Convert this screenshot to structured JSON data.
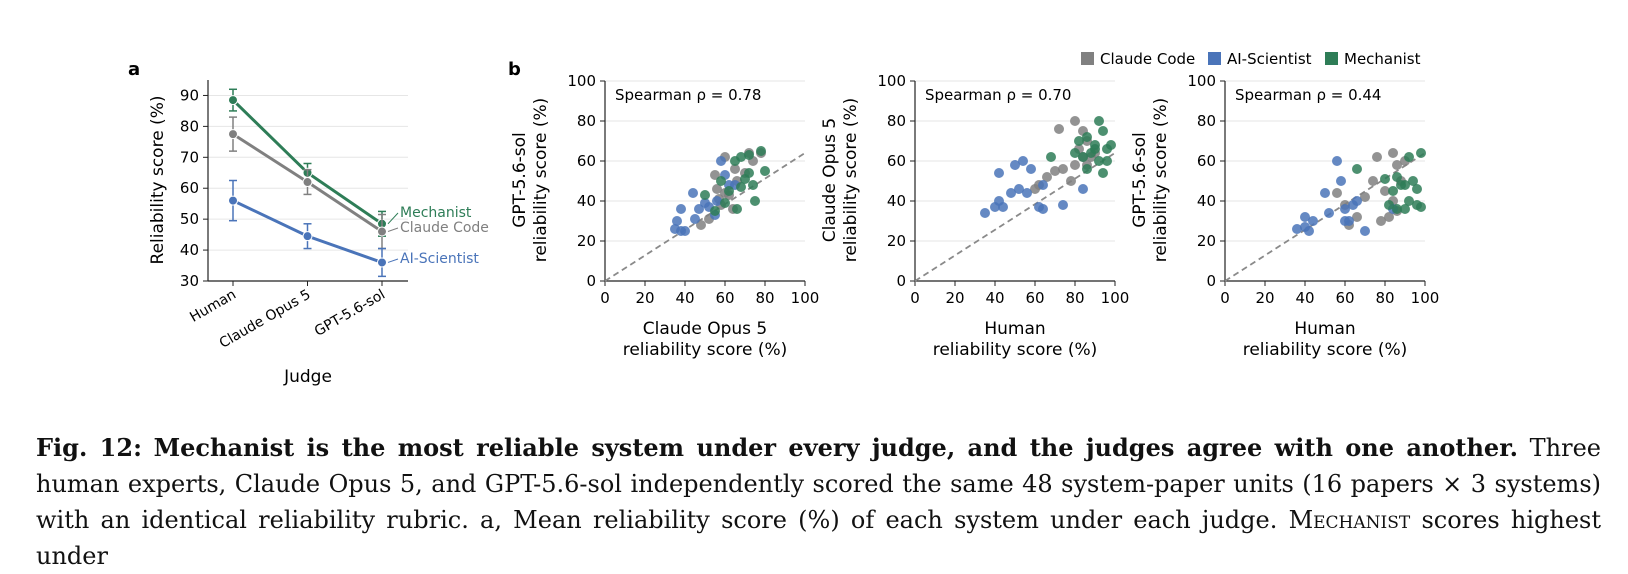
{
  "colors": {
    "mechanist": "#2e7d57",
    "claude_code": "#808080",
    "ai_scientist": "#4a74b9",
    "grid": "#e6e6e6",
    "diagonal": "#8a8a8a"
  },
  "chart_data": [
    {
      "panel_label": "a",
      "type": "line",
      "categories": [
        "Human",
        "Claude Opus 5",
        "GPT-5.6-sol"
      ],
      "xlabel": "Judge",
      "ylabel": "Reliability score (%)",
      "ylim": [
        30,
        95
      ],
      "yticks": [
        30,
        40,
        50,
        60,
        70,
        80,
        90
      ],
      "grid": true,
      "series": [
        {
          "name": "Mechanist",
          "color_key": "mechanist",
          "values": [
            88.5,
            65.0,
            48.5
          ],
          "err": [
            3.5,
            3.0,
            4.0
          ]
        },
        {
          "name": "Claude Code",
          "color_key": "claude_code",
          "values": [
            77.5,
            62.0,
            46.0
          ],
          "err": [
            5.5,
            4.0,
            5.5
          ]
        },
        {
          "name": "AI-Scientist",
          "color_key": "ai_scientist",
          "values": [
            56.0,
            44.5,
            36.0
          ],
          "err": [
            6.5,
            4.0,
            4.5
          ]
        }
      ]
    },
    {
      "panel_label": "b",
      "type": "scatter",
      "xlabel_lines": [
        "Claude Opus 5",
        "reliability score (%)"
      ],
      "ylabel_lines": [
        "GPT-5.6-sol",
        "reliability score (%)"
      ],
      "annotation": "Spearman ρ = 0.78",
      "xlim": [
        0,
        100
      ],
      "ylim": [
        0,
        100
      ],
      "ticks": [
        0,
        20,
        40,
        60,
        80,
        100
      ],
      "grid": true,
      "series": [
        {
          "name": "Claude Code",
          "color_key": "claude_code",
          "points": [
            [
              55,
              53
            ],
            [
              60,
              62
            ],
            [
              65,
              56
            ],
            [
              72,
              64
            ],
            [
              78,
              64
            ],
            [
              62,
              43
            ],
            [
              58,
              38
            ],
            [
              52,
              31
            ],
            [
              48,
              28
            ],
            [
              66,
              50
            ],
            [
              56,
              46
            ],
            [
              70,
              54
            ],
            [
              60,
              44
            ],
            [
              64,
              36
            ],
            [
              74,
              60
            ],
            [
              57,
              41
            ]
          ]
        },
        {
          "name": "AI-Scientist",
          "color_key": "ai_scientist",
          "points": [
            [
              35,
              26
            ],
            [
              38,
              25
            ],
            [
              40,
              25
            ],
            [
              36,
              30
            ],
            [
              45,
              31
            ],
            [
              47,
              36
            ],
            [
              50,
              39
            ],
            [
              55,
              33
            ],
            [
              60,
              53
            ],
            [
              62,
              48
            ],
            [
              58,
              60
            ],
            [
              44,
              44
            ],
            [
              52,
              37
            ],
            [
              65,
              48
            ],
            [
              38,
              36
            ],
            [
              56,
              40
            ]
          ]
        },
        {
          "name": "Mechanist",
          "color_key": "mechanist",
          "points": [
            [
              68,
              62
            ],
            [
              72,
              63
            ],
            [
              78,
              65
            ],
            [
              65,
              60
            ],
            [
              70,
              51
            ],
            [
              74,
              48
            ],
            [
              62,
              45
            ],
            [
              68,
              47
            ],
            [
              80,
              55
            ],
            [
              66,
              36
            ],
            [
              75,
              40
            ],
            [
              60,
              39
            ],
            [
              55,
              35
            ],
            [
              58,
              50
            ],
            [
              72,
              54
            ],
            [
              50,
              43
            ]
          ]
        }
      ]
    },
    {
      "type": "scatter",
      "xlabel_lines": [
        "Human",
        "reliability score (%)"
      ],
      "ylabel_lines": [
        "Claude Opus 5",
        "reliability score (%)"
      ],
      "annotation": "Spearman ρ = 0.70",
      "xlim": [
        0,
        100
      ],
      "ylim": [
        0,
        100
      ],
      "ticks": [
        0,
        20,
        40,
        60,
        80,
        100
      ],
      "grid": true,
      "series": [
        {
          "name": "Claude Code",
          "color_key": "claude_code",
          "points": [
            [
              80,
              80
            ],
            [
              84,
              75
            ],
            [
              86,
              70
            ],
            [
              82,
              66
            ],
            [
              88,
              62
            ],
            [
              80,
              58
            ],
            [
              74,
              56
            ],
            [
              70,
              55
            ],
            [
              66,
              52
            ],
            [
              62,
              48
            ],
            [
              60,
              46
            ],
            [
              90,
              64
            ],
            [
              78,
              50
            ],
            [
              86,
              58
            ],
            [
              72,
              76
            ],
            [
              84,
              62
            ]
          ]
        },
        {
          "name": "AI-Scientist",
          "color_key": "ai_scientist",
          "points": [
            [
              35,
              34
            ],
            [
              40,
              37
            ],
            [
              42,
              40
            ],
            [
              44,
              37
            ],
            [
              48,
              44
            ],
            [
              52,
              46
            ],
            [
              56,
              44
            ],
            [
              50,
              58
            ],
            [
              54,
              60
            ],
            [
              58,
              56
            ],
            [
              42,
              54
            ],
            [
              62,
              37
            ],
            [
              64,
              48
            ],
            [
              74,
              38
            ],
            [
              84,
              46
            ],
            [
              64,
              36
            ]
          ]
        },
        {
          "name": "Mechanist",
          "color_key": "mechanist",
          "points": [
            [
              92,
              80
            ],
            [
              94,
              75
            ],
            [
              86,
              72
            ],
            [
              90,
              68
            ],
            [
              96,
              66
            ],
            [
              98,
              68
            ],
            [
              88,
              64
            ],
            [
              84,
              62
            ],
            [
              92,
              60
            ],
            [
              96,
              60
            ],
            [
              86,
              56
            ],
            [
              94,
              54
            ],
            [
              80,
              64
            ],
            [
              68,
              62
            ],
            [
              90,
              66
            ],
            [
              82,
              70
            ]
          ]
        }
      ]
    },
    {
      "type": "scatter",
      "xlabel_lines": [
        "Human",
        "reliability score (%)"
      ],
      "ylabel_lines": [
        "GPT-5.6-sol",
        "reliability score (%)"
      ],
      "annotation": "Spearman ρ = 0.44",
      "xlim": [
        0,
        100
      ],
      "ylim": [
        0,
        100
      ],
      "ticks": [
        0,
        20,
        40,
        60,
        80,
        100
      ],
      "grid": true,
      "series": [
        {
          "name": "Claude Code",
          "color_key": "claude_code",
          "points": [
            [
              84,
              64
            ],
            [
              86,
              58
            ],
            [
              90,
              60
            ],
            [
              76,
              62
            ],
            [
              80,
              45
            ],
            [
              84,
              40
            ],
            [
              86,
              35
            ],
            [
              82,
              32
            ],
            [
              78,
              30
            ],
            [
              70,
              42
            ],
            [
              66,
              32
            ],
            [
              62,
              28
            ],
            [
              56,
              44
            ],
            [
              60,
              38
            ],
            [
              74,
              50
            ],
            [
              88,
              50
            ]
          ]
        },
        {
          "name": "AI-Scientist",
          "color_key": "ai_scientist",
          "points": [
            [
              36,
              26
            ],
            [
              40,
              27
            ],
            [
              42,
              25
            ],
            [
              40,
              32
            ],
            [
              44,
              30
            ],
            [
              50,
              44
            ],
            [
              52,
              34
            ],
            [
              56,
              60
            ],
            [
              58,
              50
            ],
            [
              60,
              36
            ],
            [
              62,
              30
            ],
            [
              64,
              38
            ],
            [
              66,
              40
            ],
            [
              70,
              25
            ],
            [
              84,
              36
            ],
            [
              60,
              30
            ]
          ]
        },
        {
          "name": "Mechanist",
          "color_key": "mechanist",
          "points": [
            [
              80,
              51
            ],
            [
              84,
              45
            ],
            [
              86,
              52
            ],
            [
              90,
              48
            ],
            [
              92,
              62
            ],
            [
              94,
              50
            ],
            [
              98,
              64
            ],
            [
              92,
              40
            ],
            [
              96,
              38
            ],
            [
              98,
              37
            ],
            [
              90,
              36
            ],
            [
              88,
              48
            ],
            [
              96,
              46
            ],
            [
              86,
              36
            ],
            [
              82,
              38
            ],
            [
              66,
              56
            ]
          ]
        }
      ]
    }
  ],
  "legend": {
    "position": "top-right",
    "items": [
      {
        "label": "Claude Code",
        "color_key": "claude_code"
      },
      {
        "label": "AI-Scientist",
        "color_key": "ai_scientist"
      },
      {
        "label": "Mechanist",
        "color_key": "mechanist"
      }
    ]
  },
  "caption": {
    "fig_label": "Fig. 12:",
    "bold_text": "Mechanist is the most reliable system under every judge, and the judges agree with one another.",
    "body_part1": "Three human experts, Claude Opus 5, and GPT-5.6-sol independently scored the same 48 system-paper units (16 papers × 3 systems) with an identical reliability rubric. a, Mean reliability score (%) of each system under each judge.",
    "smallcaps_word": "Mechanist",
    "body_part2": "scores highest under"
  }
}
